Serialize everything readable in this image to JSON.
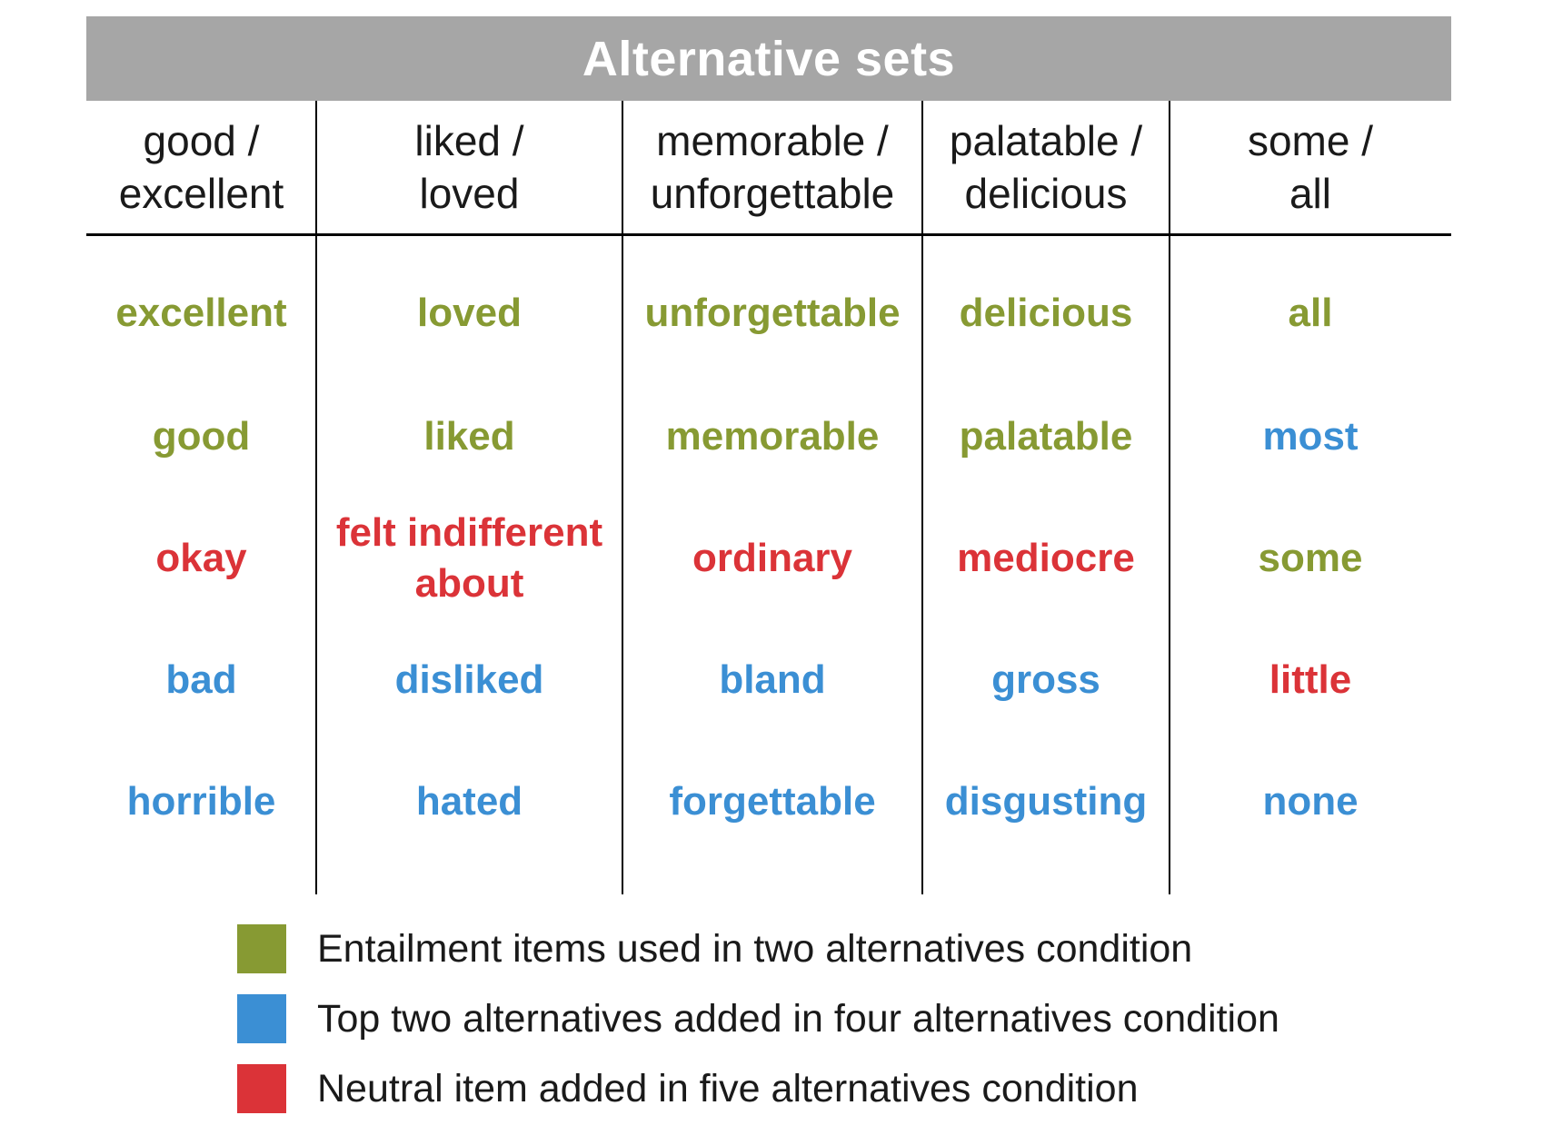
{
  "title": "Alternative sets",
  "colors": {
    "green": "#879a33",
    "blue": "#3b8fd4",
    "red": "#db3338",
    "banner": "#a6a6a6"
  },
  "columns": [
    {
      "header": [
        "good /",
        "excellent"
      ],
      "cells": [
        {
          "text": "excellent",
          "color": "green"
        },
        {
          "text": "good",
          "color": "green"
        },
        {
          "text": "okay",
          "color": "red"
        },
        {
          "text": "bad",
          "color": "blue"
        },
        {
          "text": "horrible",
          "color": "blue"
        }
      ]
    },
    {
      "header": [
        "liked /",
        "loved"
      ],
      "cells": [
        {
          "text": "loved",
          "color": "green"
        },
        {
          "text": "liked",
          "color": "green"
        },
        {
          "text": "felt indifferent about",
          "color": "red"
        },
        {
          "text": "disliked",
          "color": "blue"
        },
        {
          "text": "hated",
          "color": "blue"
        }
      ]
    },
    {
      "header": [
        "memorable /",
        "unforgettable"
      ],
      "cells": [
        {
          "text": "unforgettable",
          "color": "green"
        },
        {
          "text": "memorable",
          "color": "green"
        },
        {
          "text": "ordinary",
          "color": "red"
        },
        {
          "text": "bland",
          "color": "blue"
        },
        {
          "text": "forgettable",
          "color": "blue"
        }
      ]
    },
    {
      "header": [
        "palatable /",
        "delicious"
      ],
      "cells": [
        {
          "text": "delicious",
          "color": "green"
        },
        {
          "text": "palatable",
          "color": "green"
        },
        {
          "text": "mediocre",
          "color": "red"
        },
        {
          "text": "gross",
          "color": "blue"
        },
        {
          "text": "disgusting",
          "color": "blue"
        }
      ]
    },
    {
      "header": [
        "some /",
        "all"
      ],
      "cells": [
        {
          "text": "all",
          "color": "green"
        },
        {
          "text": "most",
          "color": "blue"
        },
        {
          "text": "some",
          "color": "green"
        },
        {
          "text": "little",
          "color": "red"
        },
        {
          "text": "none",
          "color": "blue"
        }
      ]
    }
  ],
  "legend": [
    {
      "label": "Entailment items used in two alternatives condition",
      "color": "green"
    },
    {
      "label": "Top two alternatives added in four alternatives condition",
      "color": "blue"
    },
    {
      "label": "Neutral item added in five alternatives condition",
      "color": "red"
    }
  ]
}
